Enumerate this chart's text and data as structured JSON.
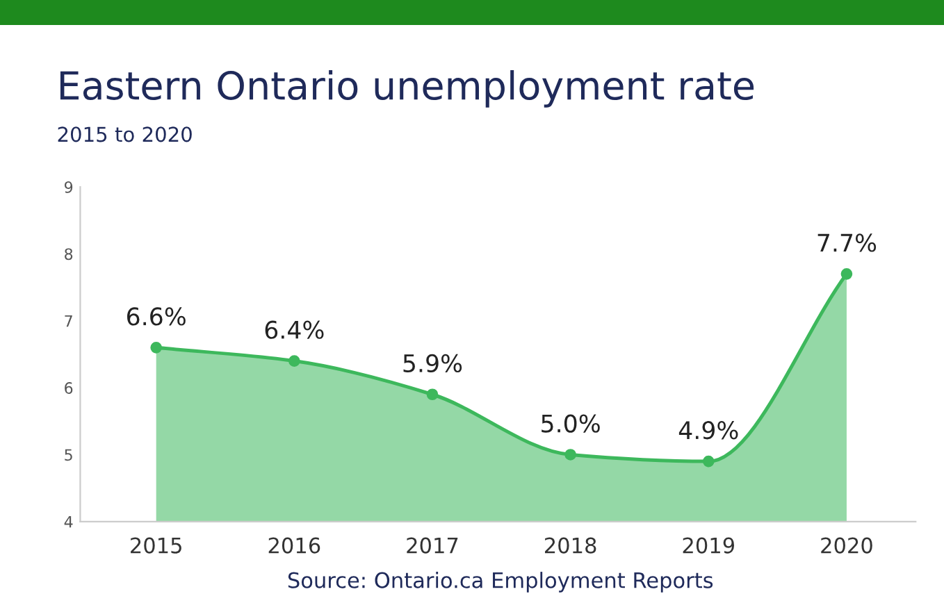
{
  "chart_data": {
    "type": "area",
    "title": "Eastern Ontario unemployment rate",
    "subtitle": "2015 to 2020",
    "categories": [
      "2015",
      "2016",
      "2017",
      "2018",
      "2019",
      "2020"
    ],
    "series": [
      {
        "color": "#3db85c",
        "values": [
          6.6,
          6.4,
          5.9,
          5.0,
          4.9,
          7.7
        ],
        "value_labels": [
          "6.6%",
          "6.4%",
          "5.9%",
          "5.0%",
          "4.9%",
          "7.7%"
        ]
      }
    ],
    "ylim": [
      4,
      9
    ],
    "yticks": [
      4,
      5,
      6,
      7,
      8,
      9
    ],
    "grid": false,
    "marker": "circle",
    "line_style": "solid",
    "annotations": [
      "Source: Ontario.ca Employment Reports"
    ]
  }
}
